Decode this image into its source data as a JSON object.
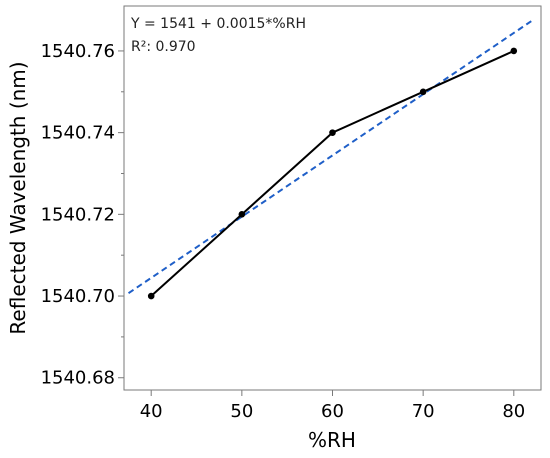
{
  "chart_data": {
    "type": "line",
    "title": "",
    "xlabel": "%RH",
    "ylabel": "Reflected Wavelength (nm)",
    "xlim": [
      37,
      83
    ],
    "ylim": [
      1540.677,
      1540.771
    ],
    "x_ticks": [
      40,
      50,
      60,
      70,
      80
    ],
    "x_tick_labels": [
      "40",
      "50",
      "60",
      "70",
      "80"
    ],
    "y_ticks": [
      1540.68,
      1540.7,
      1540.72,
      1540.74,
      1540.76
    ],
    "y_tick_labels": [
      "1540.68",
      "1540.70",
      "1540.72",
      "1540.74",
      "1540.76"
    ],
    "grid": false,
    "series": [
      {
        "x": [
          40,
          50,
          60,
          70,
          80
        ],
        "y": [
          1540.7,
          1540.72,
          1540.74,
          1540.75,
          1540.76
        ],
        "color": "#000000",
        "style": "solid",
        "markers": true
      },
      {
        "x": [
          37.5,
          82
        ],
        "y": [
          1540.7007,
          1540.7674
        ],
        "color": "#1f5fc8",
        "style": "dashed",
        "markers": false
      }
    ],
    "annotations": [
      "Y = 1541 + 0.0015*%RH",
      "R²: 0.970"
    ]
  }
}
